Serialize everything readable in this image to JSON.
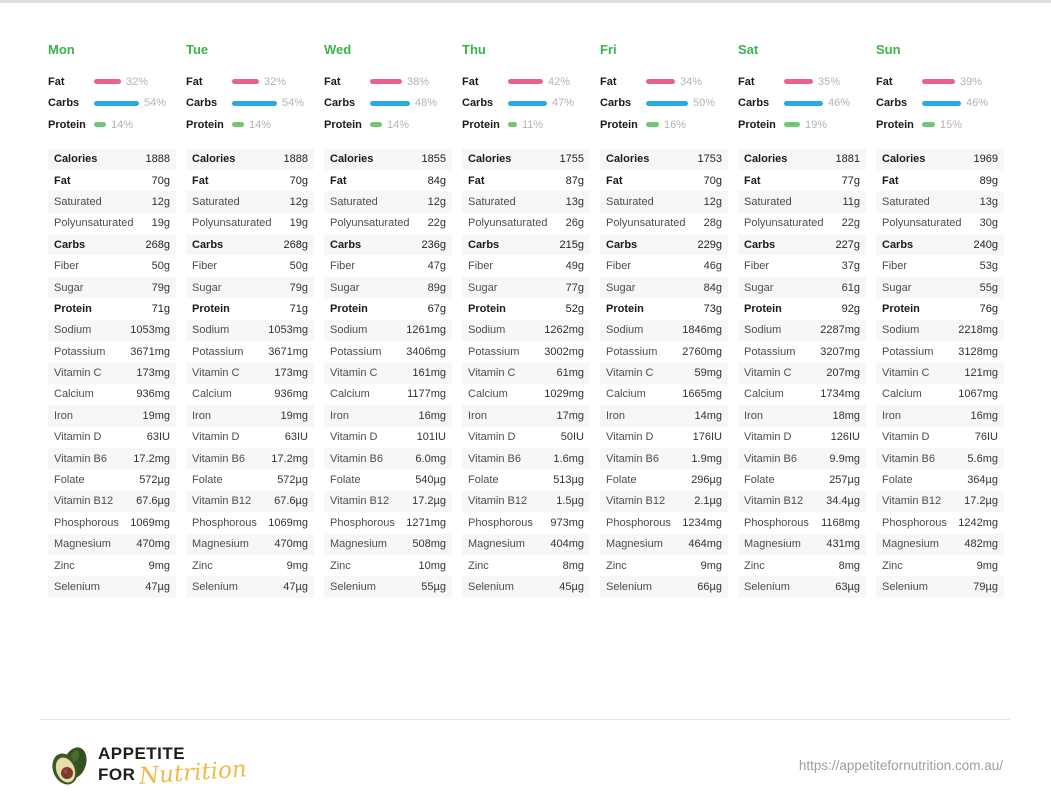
{
  "page": {
    "url": "https://appetitefornutrition.com.au/",
    "brand": {
      "line1": "APPETITE",
      "line2": "FOR",
      "script": "Nutrition"
    }
  },
  "colors": {
    "fat": "#ec6090",
    "carbs": "#29abe2",
    "protein": "#72c674",
    "day_header": "#39b54a"
  },
  "macro_labels": {
    "fat": "Fat",
    "carbs": "Carbs",
    "protein": "Protein"
  },
  "row_labels": [
    {
      "label": "Calories",
      "bold": true
    },
    {
      "label": "Fat",
      "bold": true
    },
    {
      "label": "Saturated",
      "bold": false
    },
    {
      "label": "Polyunsaturated",
      "bold": false
    },
    {
      "label": "Carbs",
      "bold": true
    },
    {
      "label": "Fiber",
      "bold": false
    },
    {
      "label": "Sugar",
      "bold": false
    },
    {
      "label": "Protein",
      "bold": true
    },
    {
      "label": "Sodium",
      "bold": false
    },
    {
      "label": "Potassium",
      "bold": false
    },
    {
      "label": "Vitamin C",
      "bold": false
    },
    {
      "label": "Calcium",
      "bold": false
    },
    {
      "label": "Iron",
      "bold": false
    },
    {
      "label": "Vitamin D",
      "bold": false
    },
    {
      "label": "Vitamin B6",
      "bold": false
    },
    {
      "label": "Folate",
      "bold": false
    },
    {
      "label": "Vitamin B12",
      "bold": false
    },
    {
      "label": "Phosphorous",
      "bold": false
    },
    {
      "label": "Magnesium",
      "bold": false
    },
    {
      "label": "Zinc",
      "bold": false
    },
    {
      "label": "Selenium",
      "bold": false
    }
  ],
  "days": [
    {
      "label": "Mon",
      "macros": {
        "fat_pct": 32,
        "carbs_pct": 54,
        "protein_pct": 14
      },
      "values": [
        "1888",
        "70g",
        "12g",
        "19g",
        "268g",
        "50g",
        "79g",
        "71g",
        "1053mg",
        "3671mg",
        "173mg",
        "936mg",
        "19mg",
        "63IU",
        "17.2mg",
        "572µg",
        "67.6µg",
        "1069mg",
        "470mg",
        "9mg",
        "47µg"
      ]
    },
    {
      "label": "Tue",
      "macros": {
        "fat_pct": 32,
        "carbs_pct": 54,
        "protein_pct": 14
      },
      "values": [
        "1888",
        "70g",
        "12g",
        "19g",
        "268g",
        "50g",
        "79g",
        "71g",
        "1053mg",
        "3671mg",
        "173mg",
        "936mg",
        "19mg",
        "63IU",
        "17.2mg",
        "572µg",
        "67.6µg",
        "1069mg",
        "470mg",
        "9mg",
        "47µg"
      ]
    },
    {
      "label": "Wed",
      "macros": {
        "fat_pct": 38,
        "carbs_pct": 48,
        "protein_pct": 14
      },
      "values": [
        "1855",
        "84g",
        "12g",
        "22g",
        "236g",
        "47g",
        "89g",
        "67g",
        "1261mg",
        "3406mg",
        "161mg",
        "1177mg",
        "16mg",
        "101IU",
        "6.0mg",
        "540µg",
        "17.2µg",
        "1271mg",
        "508mg",
        "10mg",
        "55µg"
      ]
    },
    {
      "label": "Thu",
      "macros": {
        "fat_pct": 42,
        "carbs_pct": 47,
        "protein_pct": 11
      },
      "values": [
        "1755",
        "87g",
        "13g",
        "26g",
        "215g",
        "49g",
        "77g",
        "52g",
        "1262mg",
        "3002mg",
        "61mg",
        "1029mg",
        "17mg",
        "50IU",
        "1.6mg",
        "513µg",
        "1.5µg",
        "973mg",
        "404mg",
        "8mg",
        "45µg"
      ]
    },
    {
      "label": "Fri",
      "macros": {
        "fat_pct": 34,
        "carbs_pct": 50,
        "protein_pct": 16
      },
      "values": [
        "1753",
        "70g",
        "12g",
        "28g",
        "229g",
        "46g",
        "84g",
        "73g",
        "1846mg",
        "2760mg",
        "59mg",
        "1665mg",
        "14mg",
        "176IU",
        "1.9mg",
        "296µg",
        "2.1µg",
        "1234mg",
        "464mg",
        "9mg",
        "66µg"
      ]
    },
    {
      "label": "Sat",
      "macros": {
        "fat_pct": 35,
        "carbs_pct": 46,
        "protein_pct": 19
      },
      "values": [
        "1881",
        "77g",
        "11g",
        "22g",
        "227g",
        "37g",
        "61g",
        "92g",
        "2287mg",
        "3207mg",
        "207mg",
        "1734mg",
        "18mg",
        "126IU",
        "9.9mg",
        "257µg",
        "34.4µg",
        "1168mg",
        "431mg",
        "8mg",
        "63µg"
      ]
    },
    {
      "label": "Sun",
      "macros": {
        "fat_pct": 39,
        "carbs_pct": 46,
        "protein_pct": 15
      },
      "values": [
        "1969",
        "89g",
        "13g",
        "30g",
        "240g",
        "53g",
        "55g",
        "76g",
        "2218mg",
        "3128mg",
        "121mg",
        "1067mg",
        "16mg",
        "76IU",
        "5.6mg",
        "364µg",
        "17.2µg",
        "1242mg",
        "482mg",
        "9mg",
        "79µg"
      ]
    }
  ]
}
